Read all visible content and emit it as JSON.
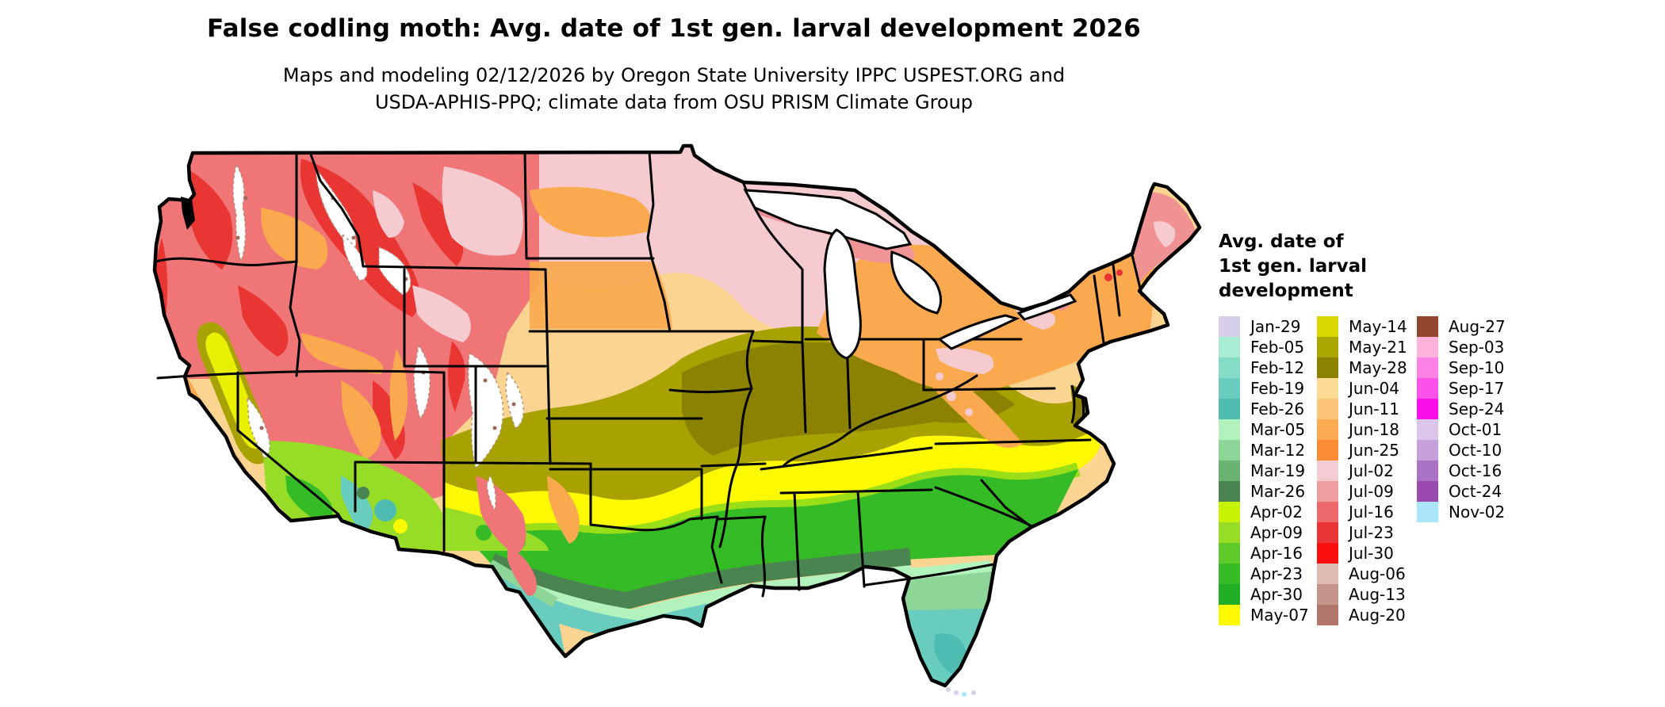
{
  "title": "False codling moth: Avg. date of 1st gen. larval development 2026",
  "subtitle_line1": "Maps and modeling 02/12/2026 by Oregon State University IPPC USPEST.ORG and",
  "subtitle_line2": "USDA-APHIS-PPQ; climate data from OSU PRISM Climate Group",
  "legend": {
    "title_lines": [
      "Avg. date of",
      "1st gen. larval",
      "development"
    ],
    "columns": [
      [
        {
          "label": "Jan-29",
          "color": "#d7cee9"
        },
        {
          "label": "Feb-05",
          "color": "#a9ecd4"
        },
        {
          "label": "Feb-12",
          "color": "#84dcc6"
        },
        {
          "label": "Feb-19",
          "color": "#68ccbe"
        },
        {
          "label": "Feb-26",
          "color": "#4fbcb2"
        },
        {
          "label": "Mar-05",
          "color": "#b2f2bc"
        },
        {
          "label": "Mar-12",
          "color": "#8ed598"
        },
        {
          "label": "Mar-19",
          "color": "#6ab371"
        },
        {
          "label": "Mar-26",
          "color": "#4a8450"
        },
        {
          "label": "Apr-02",
          "color": "#c6f400"
        },
        {
          "label": "Apr-09",
          "color": "#97dd28"
        },
        {
          "label": "Apr-16",
          "color": "#5ecb29"
        },
        {
          "label": "Apr-23",
          "color": "#35bb26"
        },
        {
          "label": "Apr-30",
          "color": "#1fae26"
        },
        {
          "label": "May-07",
          "color": "#fdf900"
        }
      ],
      [
        {
          "label": "May-14",
          "color": "#d8d800"
        },
        {
          "label": "May-21",
          "color": "#aaa800"
        },
        {
          "label": "May-28",
          "color": "#8a8200"
        },
        {
          "label": "Jun-04",
          "color": "#fcdb97"
        },
        {
          "label": "Jun-11",
          "color": "#fcc577"
        },
        {
          "label": "Jun-18",
          "color": "#fcab53"
        },
        {
          "label": "Jun-25",
          "color": "#fb8c33"
        },
        {
          "label": "Jul-02",
          "color": "#f3cdd3"
        },
        {
          "label": "Jul-09",
          "color": "#ef9d9e"
        },
        {
          "label": "Jul-16",
          "color": "#ec686a"
        },
        {
          "label": "Jul-23",
          "color": "#ea3335"
        },
        {
          "label": "Jul-30",
          "color": "#fc0f0f"
        },
        {
          "label": "Aug-06",
          "color": "#dfbcb3"
        },
        {
          "label": "Aug-13",
          "color": "#c6938a"
        },
        {
          "label": "Aug-20",
          "color": "#b1766a"
        }
      ],
      [
        {
          "label": "Aug-27",
          "color": "#93442f"
        },
        {
          "label": "Sep-03",
          "color": "#fdb3dc"
        },
        {
          "label": "Sep-10",
          "color": "#fb81e4"
        },
        {
          "label": "Sep-17",
          "color": "#fa52ea"
        },
        {
          "label": "Sep-24",
          "color": "#fb0fe8"
        },
        {
          "label": "Oct-01",
          "color": "#dcc5ec"
        },
        {
          "label": "Oct-10",
          "color": "#c5a0da"
        },
        {
          "label": "Oct-16",
          "color": "#ab73c5"
        },
        {
          "label": "Oct-24",
          "color": "#9a4bb0"
        },
        {
          "label": "Nov-02",
          "color": "#abe5fa"
        }
      ]
    ]
  }
}
